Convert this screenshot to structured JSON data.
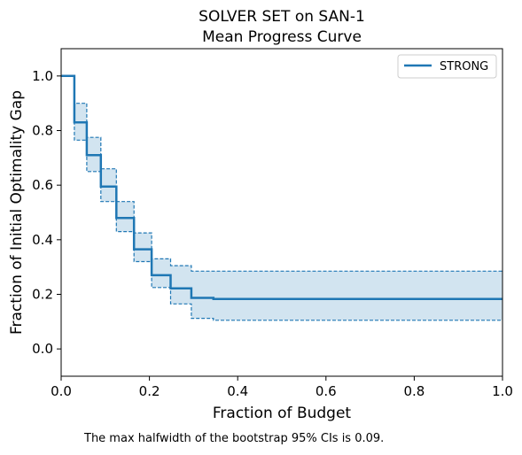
{
  "chart_data": {
    "type": "line",
    "title_line1": "SOLVER SET on SAN-1",
    "title_line2": "Mean Progress Curve",
    "xlabel": "Fraction of Budget",
    "ylabel": "Fraction of Initial Optimality Gap",
    "xlim": [
      0.0,
      1.0
    ],
    "ylim": [
      -0.1,
      1.1
    ],
    "xticks": [
      "0.0",
      "0.2",
      "0.4",
      "0.6",
      "0.8",
      "1.0"
    ],
    "xtick_values": [
      0.0,
      0.2,
      0.4,
      0.6,
      0.8,
      1.0
    ],
    "yticks": [
      "0.0",
      "0.2",
      "0.4",
      "0.6",
      "0.8",
      "1.0"
    ],
    "ytick_values": [
      0.0,
      0.2,
      0.4,
      0.6,
      0.8,
      1.0
    ],
    "grid": false,
    "legend_position": "top-right",
    "series": [
      {
        "name": "STRONG",
        "color": "#1f77b4",
        "step_x": [
          0.0,
          0.03,
          0.058,
          0.09,
          0.125,
          0.165,
          0.205,
          0.248,
          0.295,
          0.345,
          1.0
        ],
        "step_y": [
          1.0,
          0.83,
          0.71,
          0.595,
          0.48,
          0.365,
          0.27,
          0.222,
          0.187,
          0.183,
          0.183
        ],
        "ci_upper": [
          1.0,
          0.9,
          0.775,
          0.66,
          0.54,
          0.425,
          0.33,
          0.305,
          0.285,
          0.285,
          0.285
        ],
        "ci_lower": [
          1.0,
          0.765,
          0.65,
          0.54,
          0.43,
          0.32,
          0.225,
          0.165,
          0.112,
          0.105,
          0.105
        ]
      }
    ]
  },
  "caption": "The max halfwidth of the bootstrap 95% CIs is 0.09."
}
